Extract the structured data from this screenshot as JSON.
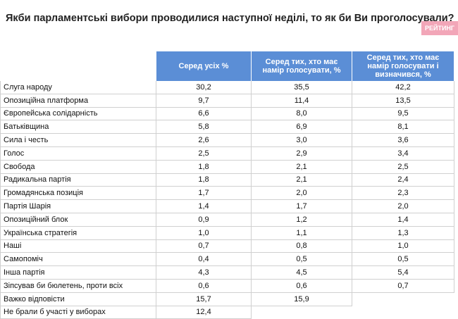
{
  "header": {
    "title": "Якби парламентські вибори проводилися наступної неділі, то як би Ви проголосували?",
    "logo": "РЕЙТИНГ"
  },
  "table": {
    "columns": [
      "Серед усіх %",
      "Серед тих, хто має намір голосувати, %",
      "Серед тих, хто має намір голосувати і визначився, %"
    ],
    "rows": [
      [
        "Слуга народу",
        "30,2",
        "35,5",
        "42,2"
      ],
      [
        "Опозиційна платформа",
        "9,7",
        "11,4",
        "13,5"
      ],
      [
        "Європейська солідарність",
        "6,6",
        "8,0",
        "9,5"
      ],
      [
        "Батьківщина",
        "5,8",
        "6,9",
        "8,1"
      ],
      [
        "Сила і честь",
        "2,6",
        "3,0",
        "3,6"
      ],
      [
        "Голос",
        "2,5",
        "2,9",
        "3,4"
      ],
      [
        "Свобода",
        "1,8",
        "2,1",
        "2,5"
      ],
      [
        "Радикальна партія",
        "1,8",
        "2,1",
        "2,4"
      ],
      [
        "Громадянська позиція",
        "1,7",
        "2,0",
        "2,3"
      ],
      [
        "Партія Шарія",
        "1,4",
        "1,7",
        "2,0"
      ],
      [
        "Опозиційний блок",
        "0,9",
        "1,2",
        "1,4"
      ],
      [
        "Українська стратегія",
        "1,0",
        "1,1",
        "1,3"
      ],
      [
        "Наші",
        "0,7",
        "0,8",
        "1,0"
      ],
      [
        "Самопоміч",
        "0,4",
        "0,5",
        "0,5"
      ],
      [
        "Інша партія",
        "4,3",
        "4,5",
        "5,4"
      ],
      [
        "Зіпсував би бюлетень, проти всіх",
        "0,6",
        "0,6",
        "0,7"
      ],
      [
        "Важко відповісти",
        "15,7",
        "15,9"
      ],
      [
        "Не брали б участі у виборах",
        "12,4"
      ]
    ]
  }
}
